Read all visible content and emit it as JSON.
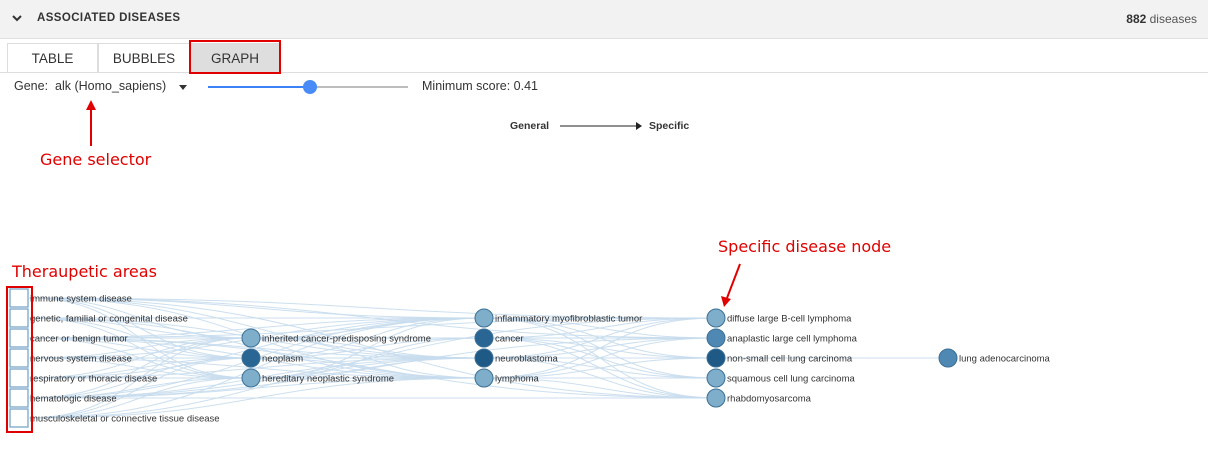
{
  "header": {
    "title": "ASSOCIATED DISEASES",
    "count_number": "882",
    "count_suffix": " diseases"
  },
  "tabs": [
    {
      "label": "TABLE",
      "active": false
    },
    {
      "label": "BUBBLES",
      "active": false
    },
    {
      "label": "GRAPH",
      "active": true
    }
  ],
  "controls": {
    "gene_label": "Gene:",
    "gene_value": "alk (Homo_sapiens)",
    "slider_value_fraction": 0.51,
    "min_score_text": "Minimum score: 0.41"
  },
  "direction": {
    "from": "General",
    "to": "Specific"
  },
  "annotations": {
    "gene_selector": "Gene selector",
    "therapeutic_areas": "Theraupetic areas",
    "specific_node": "Specific disease node"
  },
  "graph": {
    "colors": {
      "light": "#7faecb",
      "mid": "#4f88b2",
      "dark": "#2a6693",
      "darkest": "#1f5a86",
      "edge": "#c7dced",
      "annot": "#e00000"
    },
    "columns": [
      {
        "kind": "area",
        "nodes": [
          {
            "label": "immune system disease"
          },
          {
            "label": "genetic, familial or congenital disease"
          },
          {
            "label": "cancer or benign tumor"
          },
          {
            "label": "nervous system disease"
          },
          {
            "label": "respiratory or thoracic disease"
          },
          {
            "label": "hematologic disease"
          },
          {
            "label": "musculoskeletal or connective tissue disease"
          }
        ]
      },
      {
        "kind": "circle",
        "nodes": [
          {
            "label": "inherited cancer-predisposing syndrome",
            "shade": "light",
            "row": 2
          },
          {
            "label": "neoplasm",
            "shade": "dark",
            "row": 3
          },
          {
            "label": "hereditary neoplastic syndrome",
            "shade": "light",
            "row": 4
          }
        ]
      },
      {
        "kind": "circle",
        "nodes": [
          {
            "label": "inflammatory myofibroblastic tumor",
            "shade": "light",
            "row": 1
          },
          {
            "label": "cancer",
            "shade": "dark",
            "row": 2
          },
          {
            "label": "neuroblastoma",
            "shade": "darkest",
            "row": 3
          },
          {
            "label": "lymphoma",
            "shade": "light",
            "row": 4
          }
        ]
      },
      {
        "kind": "circle",
        "nodes": [
          {
            "label": "diffuse large B-cell lymphoma",
            "shade": "light",
            "row": 1
          },
          {
            "label": "anaplastic large cell lymphoma",
            "shade": "mid",
            "row": 2
          },
          {
            "label": "non-small cell lung carcinoma",
            "shade": "darkest",
            "row": 3
          },
          {
            "label": "squamous cell lung carcinoma",
            "shade": "light",
            "row": 4
          },
          {
            "label": "rhabdomyosarcoma",
            "shade": "light",
            "row": 5
          }
        ]
      },
      {
        "kind": "circle",
        "nodes": [
          {
            "label": "lung adenocarcinoma",
            "shade": "mid",
            "row": 3
          }
        ]
      }
    ]
  }
}
